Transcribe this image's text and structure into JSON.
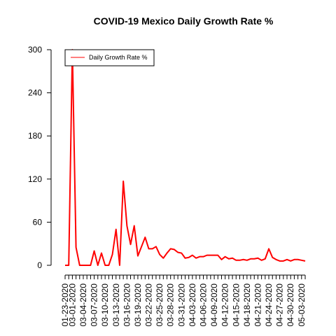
{
  "chart_data": {
    "type": "line",
    "title": "COVID-19 Mexico Daily Growth Rate %",
    "xlabel": "",
    "ylabel": "",
    "ylim": [
      0,
      300
    ],
    "yticks": [
      0,
      60,
      120,
      180,
      240,
      300
    ],
    "x_tick_labels": [
      "01-23-2020",
      "03-01-2020",
      "03-04-2020",
      "03-07-2020",
      "03-10-2020",
      "03-13-2020",
      "03-16-2020",
      "03-19-2020",
      "03-22-2020",
      "03-25-2020",
      "03-28-2020",
      "03-31-2020",
      "04-03-2020",
      "04-06-2020",
      "04-09-2020",
      "04-12-2020",
      "04-15-2020",
      "04-18-2020",
      "04-21-2020",
      "04-24-2020",
      "04-27-2020",
      "04-30-2020",
      "05-03-2020"
    ],
    "legend": {
      "position": "top-left",
      "label": "Daily Growth Rate %"
    },
    "series": [
      {
        "name": "Daily Growth Rate %",
        "color": "#ff0000",
        "values": [
          0,
          0,
          300,
          25,
          0,
          0,
          0,
          0,
          20,
          0,
          17,
          0,
          0,
          15,
          50,
          0,
          117,
          55,
          29,
          55,
          13,
          26,
          39,
          23,
          23,
          26,
          15,
          10,
          17,
          23,
          22,
          18,
          17,
          10,
          11,
          14,
          10,
          12,
          12,
          14,
          14,
          14,
          14,
          8,
          12,
          9,
          10,
          7,
          7,
          8,
          7,
          9,
          9,
          10,
          7,
          9,
          23,
          11,
          8,
          6,
          6,
          8,
          6,
          8,
          8,
          7,
          6
        ]
      }
    ]
  }
}
